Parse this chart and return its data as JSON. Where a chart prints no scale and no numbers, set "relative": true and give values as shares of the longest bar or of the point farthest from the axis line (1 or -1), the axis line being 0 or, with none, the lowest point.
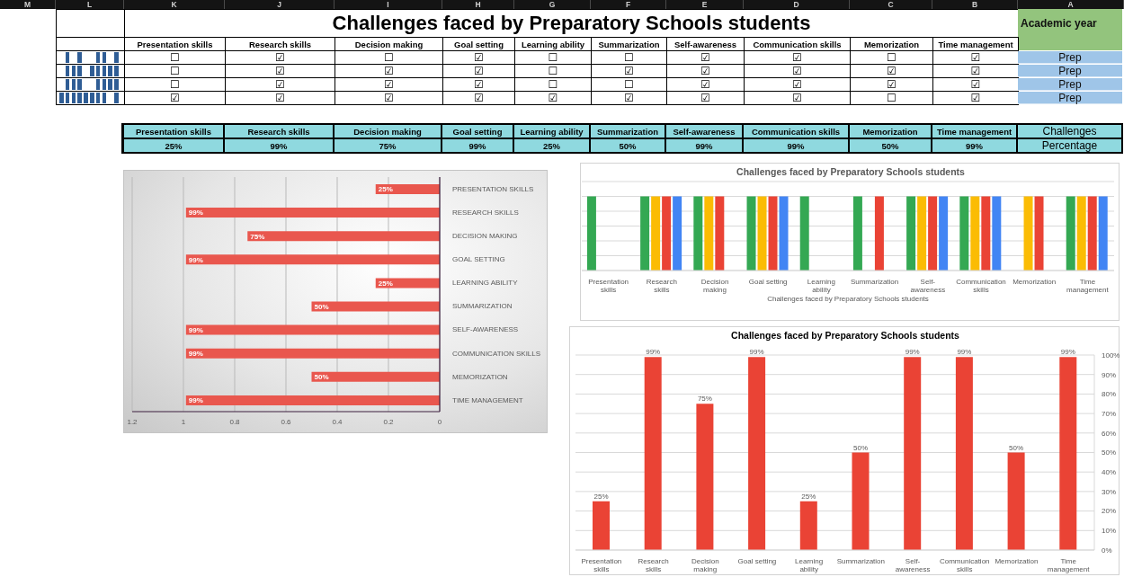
{
  "chart_data": [
    {
      "type": "other",
      "categories": [
        "M",
        "L",
        "K",
        "J",
        "I",
        "H",
        "G",
        "F",
        "E",
        "D",
        "C",
        "B",
        "A"
      ]
    },
    {
      "type": "other",
      "title": "Challenges faced by Preparatory Schools students",
      "ylabel": "Academic year",
      "categories": [
        "Presentation skills",
        "Research skills",
        "Decision making",
        "Goal setting",
        "Learning ability",
        "Summarization",
        "Self-awareness",
        "Communication skills",
        "Memorization",
        "Time management"
      ],
      "y_categories": [
        "Prep",
        "Prep",
        "Prep",
        "Prep"
      ],
      "cell_labels": [
        [
          "☐",
          "☑",
          "☐",
          "☑",
          "☐",
          "☐",
          "☑",
          "☑",
          "☐",
          "☑"
        ],
        [
          "☐",
          "☑",
          "☑",
          "☑",
          "☐",
          "☑",
          "☑",
          "☑",
          "☑",
          "☑"
        ],
        [
          "☐",
          "☑",
          "☑",
          "☑",
          "☐",
          "☐",
          "☑",
          "☑",
          "☑",
          "☑"
        ],
        [
          "☑",
          "☑",
          "☑",
          "☑",
          "☑",
          "☑",
          "☑",
          "☑",
          "☐",
          "☑"
        ]
      ],
      "color": "#ffffff"
    },
    {
      "type": "other",
      "ylabel": "Challenges",
      "categories": [
        "Presentation skills",
        "Research skills",
        "Decision making",
        "Goal setting",
        "Learning ability",
        "Summarization",
        "Self-awareness",
        "Communication skills",
        "Memorization",
        "Time management"
      ],
      "y_categories": [
        "Percentage"
      ],
      "cell_labels": [
        [
          "25%",
          "99%",
          "75%",
          "99%",
          "25%",
          "50%",
          "99%",
          "99%",
          "50%",
          "99%"
        ]
      ],
      "color": "#8fd9df"
    },
    {
      "type": "bar",
      "orientation": "horizontal",
      "categories": [
        "PRESENTATION SKILLS",
        "RESEARCH SKILLS",
        "DECISION MAKING",
        "GOAL SETTING",
        "LEARNING ABILITY",
        "SUMMARIZATION",
        "SELF-AWARENESS",
        "COMMUNICATION SKILLS",
        "MEMORIZATION",
        "TIME MANAGEMENT"
      ],
      "values": [
        0.25,
        0.99,
        0.75,
        0.99,
        0.25,
        0.5,
        0.99,
        0.99,
        0.5,
        0.99
      ],
      "value_labels": [
        "25%",
        "99%",
        "75%",
        "99%",
        "25%",
        "50%",
        "99%",
        "99%",
        "50%",
        "99%"
      ],
      "color": "#e9574e",
      "xlim": [
        1.2,
        0
      ],
      "xticks": [
        1.2,
        1,
        0.8,
        0.6,
        0.4,
        0.2,
        0
      ],
      "grid": "x"
    },
    {
      "type": "bar",
      "title": "Challenges faced by Preparatory Schools students",
      "xlabel": "Challenges faced by Preparatory Schools students",
      "categories": [
        "Presentation skills",
        "Research skills",
        "Decision making",
        "Goal setting",
        "Learning ability",
        "Summarization",
        "Self-awareness",
        "Communication skills",
        "Memorization",
        "Time management"
      ],
      "relative": true,
      "grid": "y",
      "series": [
        {
          "color": "#34a853",
          "values": [
            1,
            1,
            1,
            1,
            1,
            1,
            1,
            1,
            0,
            1
          ]
        },
        {
          "color": "#fbbc04",
          "values": [
            0,
            1,
            1,
            1,
            0,
            0,
            1,
            1,
            1,
            1
          ]
        },
        {
          "color": "#ea4335",
          "values": [
            0,
            1,
            1,
            1,
            0,
            1,
            1,
            1,
            1,
            1
          ]
        },
        {
          "color": "#4285f4",
          "values": [
            0,
            1,
            0,
            1,
            0,
            0,
            1,
            1,
            0,
            1
          ]
        }
      ]
    },
    {
      "type": "bar",
      "title": "Challenges faced by Preparatory Schools students",
      "categories": [
        "Presentation skills",
        "Research skills",
        "Decision making",
        "Goal setting",
        "Learning ability",
        "Summarization",
        "Self-awareness",
        "Communication skills",
        "Memorization",
        "Time management"
      ],
      "values": [
        25,
        99,
        75,
        99,
        25,
        50,
        99,
        99,
        50,
        99
      ],
      "value_labels": [
        "25%",
        "99%",
        "75%",
        "99%",
        "25%",
        "50%",
        "99%",
        "99%",
        "50%",
        "99%"
      ],
      "color": "#ea4335",
      "ylim": [
        0,
        100
      ],
      "yticks": [
        {
          "value": 0,
          "label": "0%"
        },
        {
          "value": 10,
          "label": "10%"
        },
        {
          "value": 20,
          "label": "20%"
        },
        {
          "value": 30,
          "label": "30%"
        },
        {
          "value": 40,
          "label": "40%"
        },
        {
          "value": 50,
          "label": "50%"
        },
        {
          "value": 60,
          "label": "60%"
        },
        {
          "value": 70,
          "label": "70%"
        },
        {
          "value": 80,
          "label": "80%"
        },
        {
          "value": 90,
          "label": "90%"
        },
        {
          "value": 100,
          "label": "100%"
        }
      ],
      "grid": "y"
    }
  ]
}
